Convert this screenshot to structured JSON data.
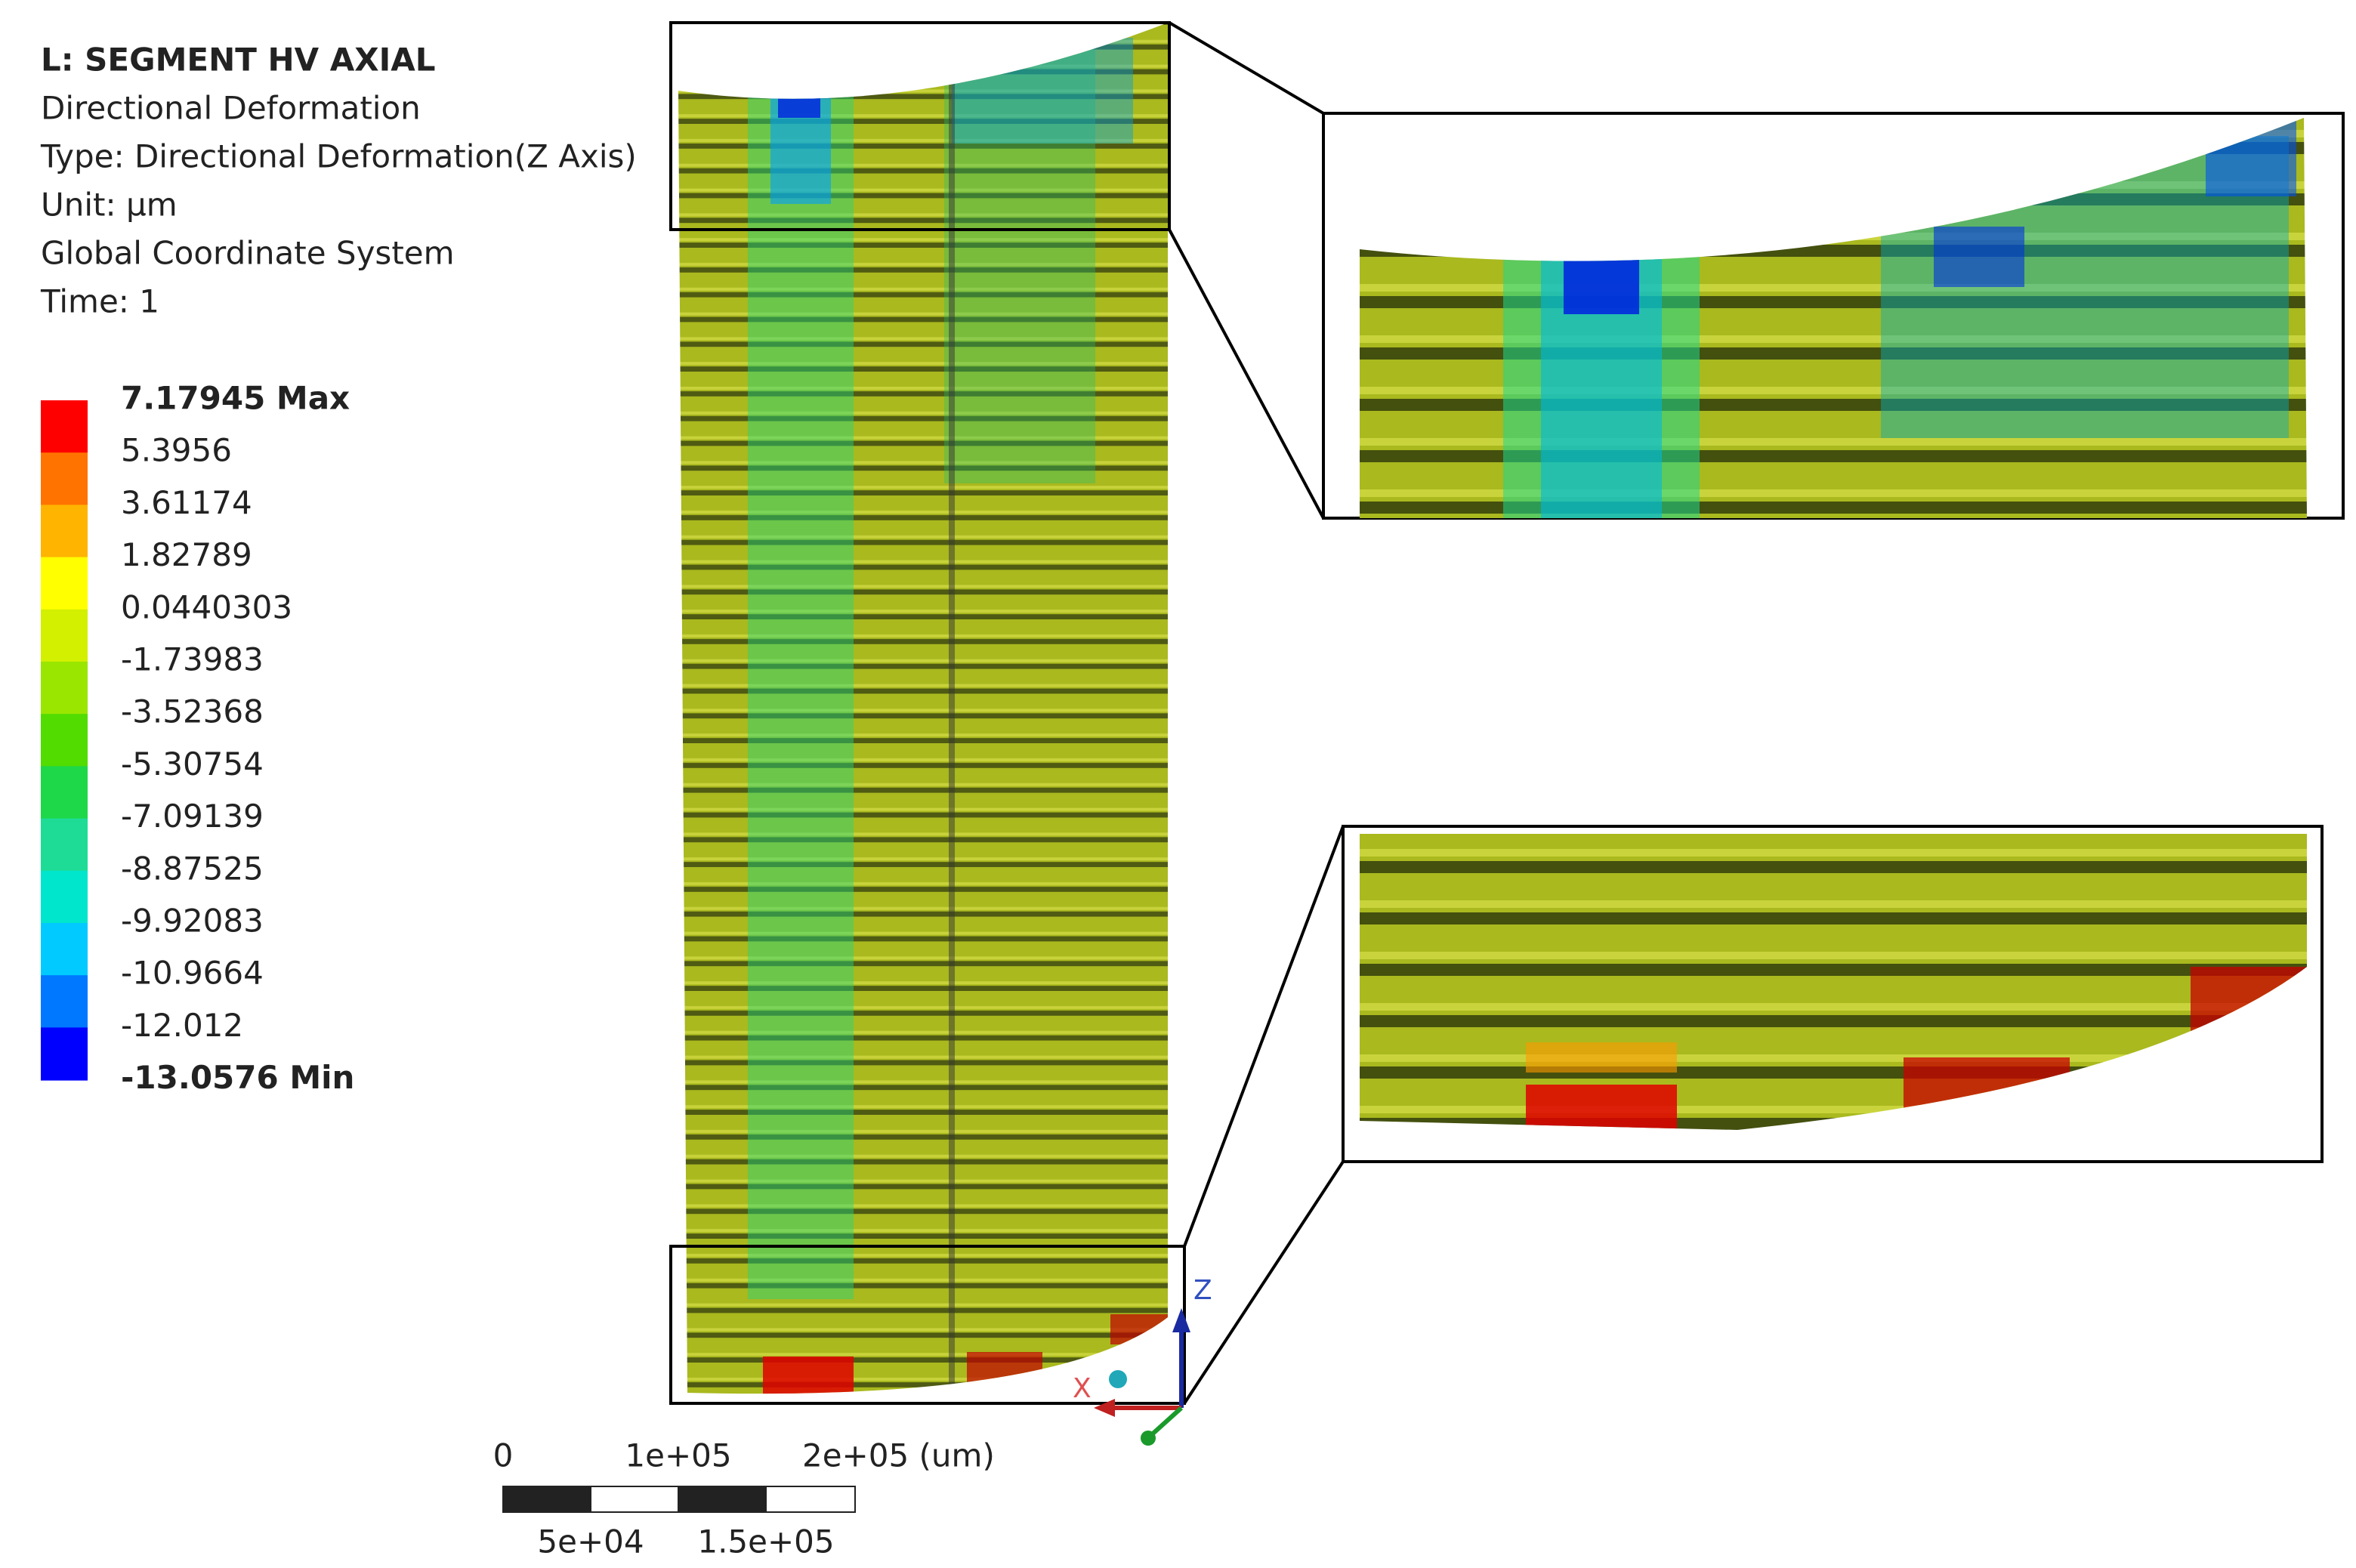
{
  "header": {
    "lines": [
      "L: SEGMENT HV AXIAL",
      "Directional Deformation",
      "Type: Directional Deformation(Z Axis)",
      "Unit: µm",
      "Global Coordinate System",
      "Time: 1"
    ]
  },
  "legend": {
    "labels": [
      "7.17945 Max",
      "5.3956",
      "3.61174",
      "1.82789",
      "0.0440303",
      "-1.73983",
      "-3.52368",
      "-5.30754",
      "-7.09139",
      "-8.87525",
      "-9.92083",
      "-10.9664",
      "-12.012",
      "-13.0576 Min"
    ],
    "colors": [
      "#ff0000",
      "#ff7400",
      "#ffb400",
      "#ffff00",
      "#d2f000",
      "#9ae600",
      "#52dc00",
      "#1ed84a",
      "#1edc96",
      "#00e6cc",
      "#00caff",
      "#0078ff",
      "#0000ff"
    ]
  },
  "scale_bar": {
    "top_labels": [
      "0",
      "1e+05",
      "2e+05 (um)"
    ],
    "bottom_labels": [
      "5e+04",
      "1.5e+05"
    ]
  },
  "triad": {
    "z": "Z",
    "x": "X"
  }
}
